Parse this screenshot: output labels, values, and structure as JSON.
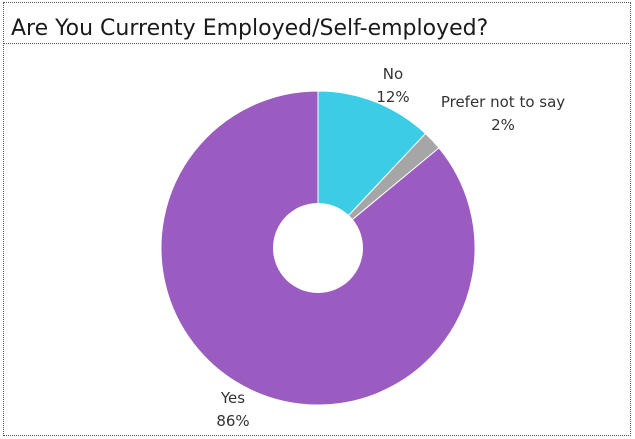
{
  "chart_data": {
    "type": "pie",
    "title": "Are You Currenty Employed/Self-employed?",
    "hole": true,
    "slices": [
      {
        "label": "No",
        "value": 12,
        "value_label": "12%",
        "color": "#3ccce6"
      },
      {
        "label": "Prefer not to say",
        "value": 2,
        "value_label": "2%",
        "color": "#a6a6a6"
      },
      {
        "label": "Yes",
        "value": 86,
        "value_label": "86%",
        "color": "#9a5cc0"
      }
    ]
  }
}
